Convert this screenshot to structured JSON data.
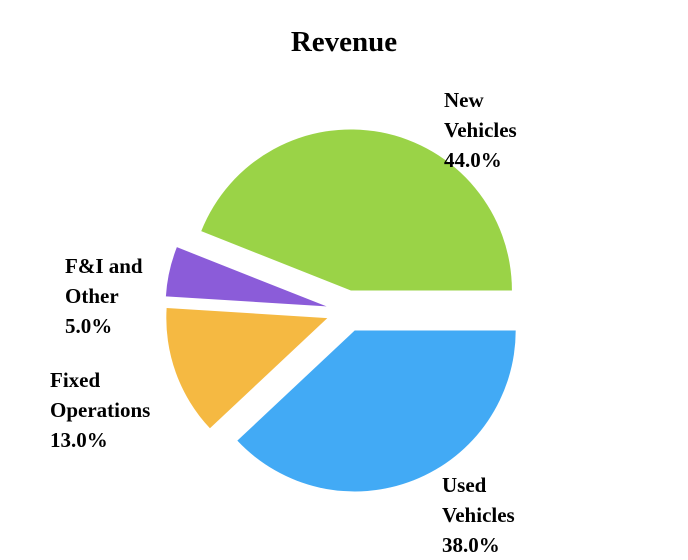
{
  "chart_data": {
    "type": "pie",
    "title": "Revenue",
    "slices": [
      {
        "label": "New Vehicles",
        "value": 44.0,
        "pct_label": "44.0%",
        "color": "#9AD347"
      },
      {
        "label": "F&I and Other",
        "value": 5.0,
        "pct_label": "5.0%",
        "color": "#8B5CD9"
      },
      {
        "label": "Fixed Operations",
        "value": 13.0,
        "pct_label": "13.0%",
        "color": "#F5B942"
      },
      {
        "label": "Used Vehicles",
        "value": 38.0,
        "pct_label": "38.0%",
        "color": "#42AAF5"
      }
    ],
    "start_angle_deg": 0,
    "direction": "counterclockwise",
    "explode": 0.13,
    "legend_position": "none",
    "labels_outside": true,
    "background_color": "#ffffff",
    "label_color": "#000000"
  },
  "annotations": {
    "new_vehicles": "New\nVehicles\n44.0%",
    "fi_other": "F&I and\nOther\n5.0%",
    "fixed_ops": "Fixed\nOperations\n13.0%",
    "used_vehicles": "Used\nVehicles\n38.0%"
  }
}
